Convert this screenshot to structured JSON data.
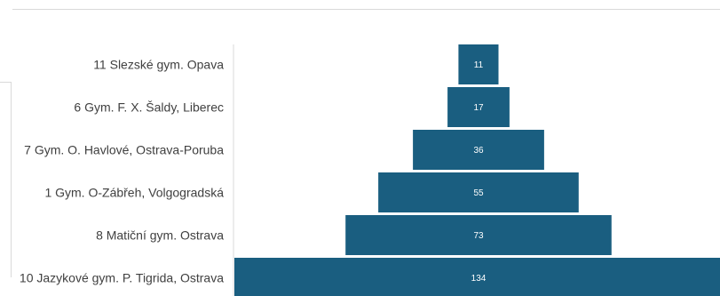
{
  "chart_data": {
    "type": "bar",
    "subtype": "funnel",
    "orientation": "horizontal",
    "categories": [
      "11 Slezské gym. Opava",
      "6 Gym. F. X. Šaldy, Liberec",
      "7 Gym. O. Havlové, Ostrava-Poruba",
      "1 Gym. O-Zábřeh, Volgogradská",
      "8 Matiční gym. Ostrava",
      "10 Jazykové gym. P. Tigrida, Ostrava"
    ],
    "values": [
      11,
      17,
      36,
      55,
      73,
      134
    ],
    "value_labels": [
      "11",
      "17",
      "36",
      "55",
      "73",
      "134"
    ],
    "bar_color": "#1a5e80",
    "grid": false,
    "legend": "none"
  }
}
